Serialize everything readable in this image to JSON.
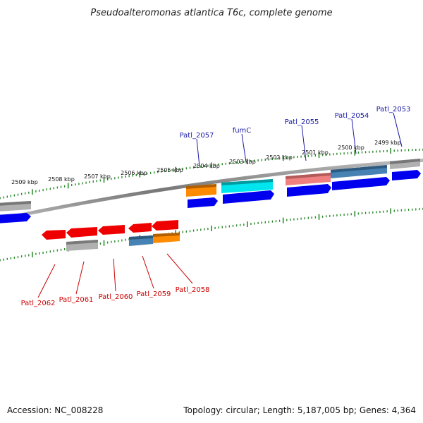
{
  "title": "Pseudoalteromonas atlantica T6c, complete genome",
  "footer": {
    "accession": "Accession: NC_008228",
    "summary": "Topology: circular; Length: 5,187,005 bp; Genes: 4,364"
  },
  "ruler": {
    "labels": [
      "2509 kbp",
      "2508 kbp",
      "2507 kbp",
      "2506 kbp",
      "2505 kbp",
      "2504 kbp",
      "2503 kbp",
      "2502 kbp",
      "2501 kbp",
      "2500 kbp",
      "2499 kbp"
    ]
  },
  "gene_labels": {
    "forward": [
      "Patl_2057",
      "fumC",
      "Patl_2055",
      "Patl_2054",
      "Patl_2053"
    ],
    "reverse": [
      "Patl_2062",
      "Patl_2061",
      "Patl_2060",
      "Patl_2059",
      "Patl_2058"
    ]
  },
  "colors": {
    "forward_label": "#1a1aa6",
    "reverse_label": "#cc0000",
    "cds_forward": "#0000ee",
    "cds_reverse": "#ee0000",
    "ruler_tick": "#2a8a2a",
    "backbone": "#888888",
    "orange": "#ff8c00",
    "cyan": "#00e5ee",
    "salmon": "#f08080",
    "steel": "#4682b4",
    "grey": "#b0b0b0"
  }
}
